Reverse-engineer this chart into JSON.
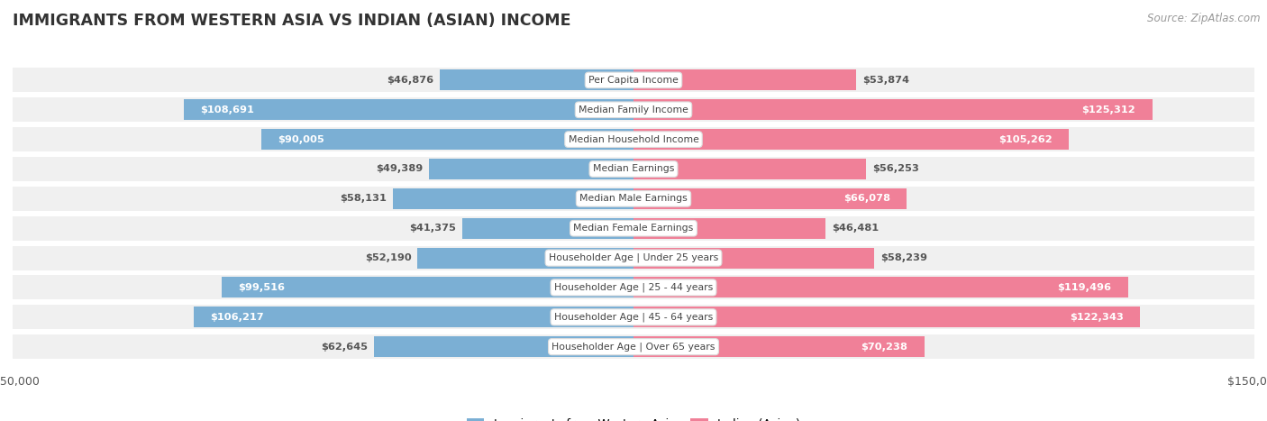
{
  "title": "IMMIGRANTS FROM WESTERN ASIA VS INDIAN (ASIAN) INCOME",
  "source": "Source: ZipAtlas.com",
  "categories": [
    "Per Capita Income",
    "Median Family Income",
    "Median Household Income",
    "Median Earnings",
    "Median Male Earnings",
    "Median Female Earnings",
    "Householder Age | Under 25 years",
    "Householder Age | 25 - 44 years",
    "Householder Age | 45 - 64 years",
    "Householder Age | Over 65 years"
  ],
  "western_asia": [
    46876,
    108691,
    90005,
    49389,
    58131,
    41375,
    52190,
    99516,
    106217,
    62645
  ],
  "indian": [
    53874,
    125312,
    105262,
    56253,
    66078,
    46481,
    58239,
    119496,
    122343,
    70238
  ],
  "max_value": 150000,
  "color_western": "#7bafd4",
  "color_indian": "#f08098",
  "row_bg": "#f0f0f0",
  "row_gap_color": "#ffffff",
  "wa_threshold": 65000,
  "ind_threshold": 65000
}
